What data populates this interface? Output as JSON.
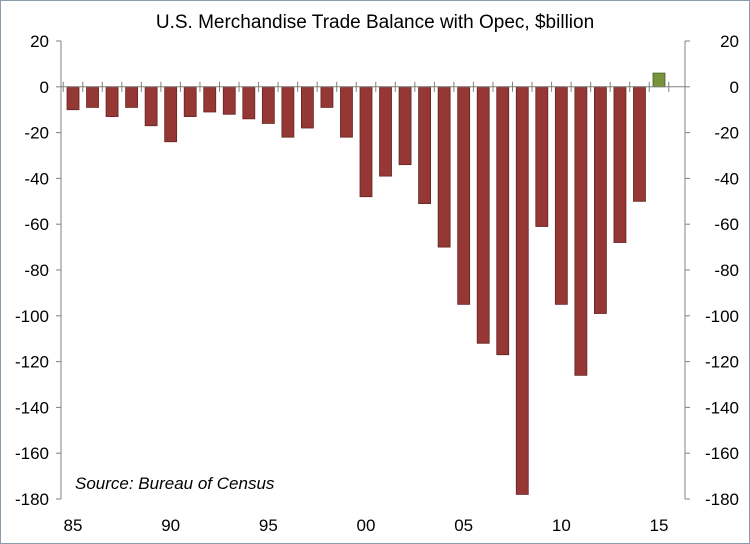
{
  "chart_data": {
    "type": "bar",
    "title": "U.S. Merchandise Trade Balance with Opec, $billion",
    "annotation": "Source: Bureau of Census",
    "x": [
      1985,
      1986,
      1987,
      1988,
      1989,
      1990,
      1991,
      1992,
      1993,
      1994,
      1995,
      1996,
      1997,
      1998,
      1999,
      2000,
      2001,
      2002,
      2003,
      2004,
      2005,
      2006,
      2007,
      2008,
      2009,
      2010,
      2011,
      2012,
      2013,
      2014,
      2015
    ],
    "series": [
      {
        "values": [
          -10,
          -9,
          -13,
          -9,
          -17,
          -24,
          -13,
          -11,
          -12,
          -14,
          -16,
          -22,
          -18,
          -9,
          -22,
          -48,
          -39,
          -34,
          -51,
          -70,
          -95,
          -112,
          -117,
          -178,
          -61,
          -95,
          -126,
          -99,
          -68,
          -50,
          6
        ]
      }
    ],
    "x_tick_labels": [
      "85",
      "90",
      "95",
      "00",
      "05",
      "10",
      "15"
    ],
    "y_tick_labels": [
      "20",
      "0",
      "-20",
      "-40",
      "-60",
      "-80",
      "-100",
      "-120",
      "-140",
      "-160",
      "-180"
    ],
    "ylim": [
      -180,
      20
    ],
    "y_step": 20,
    "left_axis": true,
    "right_axis": true,
    "grid": false,
    "colors": {
      "negative": "#953735",
      "negative_edge": "#632523",
      "positive": "#77933c",
      "positive_edge": "#4f6228",
      "axis": "#808080"
    }
  }
}
